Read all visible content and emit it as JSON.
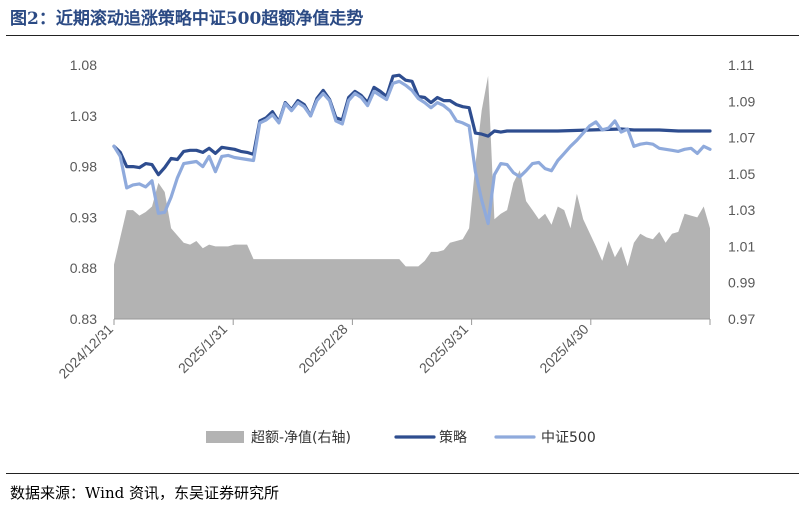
{
  "figure": {
    "title": "图2：近期滚动追涨策略中证500超额净值走势",
    "source": "数据来源：Wind 资讯，东吴证券研究所"
  },
  "chart_data": {
    "type": "line",
    "grid": false,
    "legend_position": "bottom",
    "left_axis": {
      "min": 0.83,
      "max": 1.08,
      "ticks": [
        "0.83",
        "0.88",
        "0.93",
        "0.98",
        "1.03",
        "1.08"
      ]
    },
    "right_axis": {
      "min": 0.97,
      "max": 1.11,
      "ticks": [
        "0.97",
        "0.99",
        "1.01",
        "1.03",
        "1.05",
        "1.07",
        "1.09",
        "1.11"
      ]
    },
    "x_ticks": [
      "2024/12/31",
      "2025/1/31",
      "2025/2/28",
      "2025/3/31",
      "2025/4/30"
    ],
    "x_tick_index": [
      0,
      18,
      37,
      56,
      75
    ],
    "n_points": 95,
    "series": [
      {
        "name": "超额-净值(右轴)",
        "axis": "right",
        "type": "area",
        "color": "#b3b3b3",
        "values": [
          [
            0,
            1.0
          ],
          [
            1,
            1.015
          ],
          [
            2,
            1.03
          ],
          [
            3,
            1.03
          ],
          [
            4,
            1.027
          ],
          [
            5,
            1.029
          ],
          [
            6,
            1.032
          ],
          [
            7,
            1.045
          ],
          [
            8,
            1.04
          ],
          [
            9,
            1.02
          ],
          [
            10,
            1.016
          ],
          [
            11,
            1.012
          ],
          [
            12,
            1.011
          ],
          [
            13,
            1.013
          ],
          [
            14,
            1.009
          ],
          [
            15,
            1.011
          ],
          [
            16,
            1.01
          ],
          [
            17,
            1.01
          ],
          [
            18,
            1.01
          ],
          [
            19,
            1.011
          ],
          [
            20,
            1.011
          ],
          [
            21,
            1.011
          ],
          [
            22,
            1.003
          ],
          [
            23,
            1.003
          ],
          [
            28,
            1.003
          ],
          [
            33,
            1.003
          ],
          [
            38,
            1.003
          ],
          [
            43,
            1.003
          ],
          [
            44,
            1.003
          ],
          [
            45,
            1.003
          ],
          [
            46,
            0.999
          ],
          [
            47,
            0.999
          ],
          [
            48,
            0.999
          ],
          [
            49,
            1.002
          ],
          [
            50,
            1.007
          ],
          [
            51,
            1.007
          ],
          [
            52,
            1.008
          ],
          [
            53,
            1.012
          ],
          [
            54,
            1.013
          ],
          [
            55,
            1.014
          ],
          [
            56,
            1.02
          ],
          [
            57,
            1.055
          ],
          [
            58,
            1.085
          ],
          [
            59,
            1.104
          ],
          [
            60,
            1.025
          ],
          [
            61,
            1.028
          ],
          [
            62,
            1.03
          ],
          [
            63,
            1.045
          ],
          [
            64,
            1.052
          ],
          [
            65,
            1.035
          ],
          [
            66,
            1.03
          ],
          [
            67,
            1.025
          ],
          [
            68,
            1.028
          ],
          [
            69,
            1.022
          ],
          [
            70,
            1.032
          ],
          [
            71,
            1.03
          ],
          [
            72,
            1.02
          ],
          [
            73,
            1.039
          ],
          [
            74,
            1.025
          ],
          [
            76,
            1.01
          ],
          [
            77,
            1.002
          ],
          [
            78,
            1.013
          ],
          [
            79,
            1.004
          ],
          [
            80,
            1.01
          ],
          [
            81,
            0.999
          ],
          [
            82,
            1.012
          ],
          [
            83,
            1.017
          ],
          [
            84,
            1.015
          ],
          [
            85,
            1.014
          ],
          [
            86,
            1.018
          ],
          [
            87,
            1.012
          ],
          [
            88,
            1.017
          ],
          [
            89,
            1.018
          ],
          [
            90,
            1.028
          ],
          [
            91,
            1.027
          ],
          [
            92,
            1.026
          ],
          [
            93,
            1.032
          ],
          [
            94,
            1.02
          ]
        ]
      },
      {
        "name": "策略",
        "axis": "left",
        "type": "line",
        "color": "#2e4d8f",
        "values": [
          [
            0,
            1.0
          ],
          [
            1,
            0.994
          ],
          [
            2,
            0.98
          ],
          [
            3,
            0.98
          ],
          [
            4,
            0.979
          ],
          [
            5,
            0.983
          ],
          [
            6,
            0.982
          ],
          [
            7,
            0.972
          ],
          [
            8,
            0.979
          ],
          [
            9,
            0.988
          ],
          [
            10,
            0.987
          ],
          [
            11,
            0.995
          ],
          [
            12,
            0.996
          ],
          [
            13,
            0.996
          ],
          [
            14,
            0.994
          ],
          [
            15,
            0.998
          ],
          [
            16,
            0.993
          ],
          [
            17,
            0.999
          ],
          [
            18,
            0.998
          ],
          [
            19,
            0.997
          ],
          [
            20,
            0.995
          ],
          [
            21,
            0.994
          ],
          [
            22,
            0.992
          ],
          [
            23,
            1.025
          ],
          [
            24,
            1.028
          ],
          [
            25,
            1.034
          ],
          [
            26,
            1.024
          ],
          [
            27,
            1.043
          ],
          [
            28,
            1.036
          ],
          [
            29,
            1.045
          ],
          [
            30,
            1.041
          ],
          [
            31,
            1.03
          ],
          [
            32,
            1.047
          ],
          [
            33,
            1.055
          ],
          [
            34,
            1.046
          ],
          [
            35,
            1.028
          ],
          [
            36,
            1.026
          ],
          [
            37,
            1.048
          ],
          [
            38,
            1.054
          ],
          [
            39,
            1.05
          ],
          [
            40,
            1.043
          ],
          [
            41,
            1.058
          ],
          [
            42,
            1.054
          ],
          [
            43,
            1.049
          ],
          [
            44,
            1.069
          ],
          [
            45,
            1.07
          ],
          [
            46,
            1.065
          ],
          [
            47,
            1.064
          ],
          [
            48,
            1.049
          ],
          [
            49,
            1.048
          ],
          [
            50,
            1.043
          ],
          [
            51,
            1.048
          ],
          [
            52,
            1.045
          ],
          [
            53,
            1.045
          ],
          [
            54,
            1.041
          ],
          [
            55,
            1.039
          ],
          [
            56,
            1.038
          ],
          [
            57,
            1.013
          ],
          [
            58,
            1.012
          ],
          [
            59,
            1.01
          ],
          [
            60,
            1.015
          ],
          [
            61,
            1.014
          ],
          [
            62,
            1.015
          ],
          [
            70,
            1.015
          ],
          [
            80,
            1.017
          ],
          [
            82,
            1.016
          ],
          [
            86,
            1.016
          ],
          [
            89,
            1.015
          ],
          [
            93,
            1.015
          ],
          [
            94,
            1.015
          ]
        ]
      },
      {
        "name": "中证500",
        "axis": "left",
        "type": "line",
        "color": "#8faadc",
        "values": [
          [
            0,
            1.0
          ],
          [
            1,
            0.99
          ],
          [
            2,
            0.959
          ],
          [
            3,
            0.962
          ],
          [
            4,
            0.963
          ],
          [
            5,
            0.96
          ],
          [
            6,
            0.966
          ],
          [
            7,
            0.934
          ],
          [
            8,
            0.935
          ],
          [
            9,
            0.95
          ],
          [
            10,
            0.969
          ],
          [
            11,
            0.983
          ],
          [
            12,
            0.984
          ],
          [
            13,
            0.985
          ],
          [
            14,
            0.98
          ],
          [
            15,
            0.99
          ],
          [
            16,
            0.975
          ],
          [
            17,
            0.99
          ],
          [
            18,
            0.991
          ],
          [
            19,
            0.989
          ],
          [
            20,
            0.988
          ],
          [
            21,
            0.987
          ],
          [
            22,
            0.986
          ],
          [
            23,
            1.023
          ],
          [
            24,
            1.026
          ],
          [
            25,
            1.031
          ],
          [
            26,
            1.023
          ],
          [
            27,
            1.042
          ],
          [
            28,
            1.035
          ],
          [
            29,
            1.043
          ],
          [
            30,
            1.039
          ],
          [
            31,
            1.03
          ],
          [
            32,
            1.045
          ],
          [
            33,
            1.052
          ],
          [
            34,
            1.045
          ],
          [
            35,
            1.025
          ],
          [
            36,
            1.022
          ],
          [
            37,
            1.045
          ],
          [
            38,
            1.052
          ],
          [
            39,
            1.048
          ],
          [
            40,
            1.04
          ],
          [
            41,
            1.054
          ],
          [
            42,
            1.05
          ],
          [
            43,
            1.046
          ],
          [
            44,
            1.062
          ],
          [
            45,
            1.064
          ],
          [
            46,
            1.06
          ],
          [
            47,
            1.055
          ],
          [
            48,
            1.047
          ],
          [
            49,
            1.043
          ],
          [
            50,
            1.038
          ],
          [
            51,
            1.043
          ],
          [
            52,
            1.04
          ],
          [
            53,
            1.035
          ],
          [
            54,
            1.025
          ],
          [
            55,
            1.023
          ],
          [
            56,
            1.02
          ],
          [
            57,
            0.975
          ],
          [
            58,
            0.947
          ],
          [
            59,
            0.924
          ],
          [
            60,
            0.972
          ],
          [
            61,
            0.983
          ],
          [
            62,
            0.982
          ],
          [
            63,
            0.974
          ],
          [
            64,
            0.97
          ],
          [
            65,
            0.976
          ],
          [
            66,
            0.983
          ],
          [
            67,
            0.984
          ],
          [
            68,
            0.978
          ],
          [
            69,
            0.976
          ],
          [
            70,
            0.986
          ],
          [
            71,
            0.993
          ],
          [
            72,
            1.0
          ],
          [
            73,
            1.006
          ],
          [
            74,
            1.013
          ],
          [
            75,
            1.02
          ],
          [
            76,
            1.024
          ],
          [
            77,
            1.016
          ],
          [
            78,
            1.018
          ],
          [
            79,
            1.025
          ],
          [
            80,
            1.014
          ],
          [
            81,
            1.017
          ],
          [
            82,
            1.0
          ],
          [
            83,
            1.002
          ],
          [
            84,
            1.003
          ],
          [
            85,
            1.002
          ],
          [
            86,
            0.998
          ],
          [
            87,
            0.997
          ],
          [
            88,
            0.996
          ],
          [
            89,
            0.995
          ],
          [
            90,
            0.997
          ],
          [
            91,
            0.998
          ],
          [
            92,
            0.993
          ],
          [
            93,
            1.0
          ],
          [
            94,
            0.997
          ]
        ]
      }
    ]
  }
}
